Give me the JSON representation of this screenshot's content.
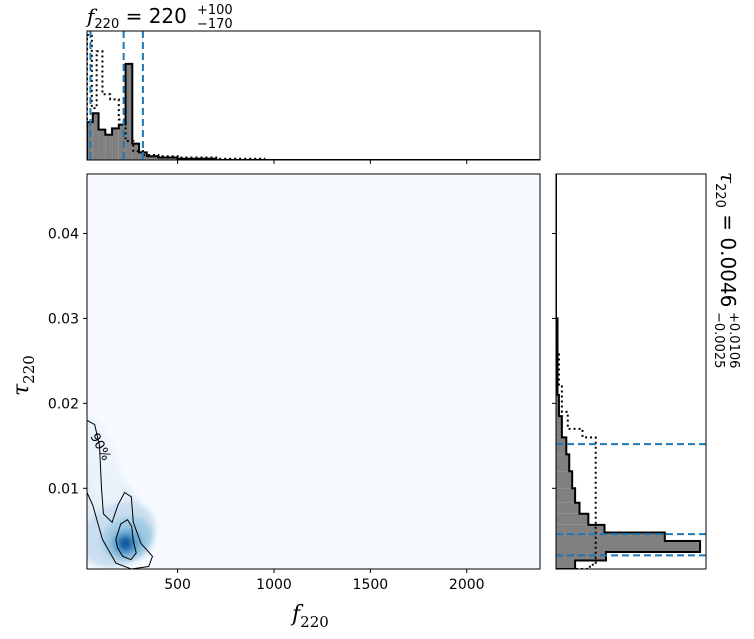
{
  "chart_data": [
    {
      "type": "histogram",
      "panel": "top",
      "title_var": "f",
      "title_sub": "220",
      "title_eq": " = 220",
      "title_sup": "+100",
      "title_inf": "−170",
      "x_range": [
        30,
        2380
      ],
      "markers": [
        48,
        220,
        320
      ],
      "posterior_bins": [
        {
          "x0": 30,
          "x1": 60,
          "h": 0.3
        },
        {
          "x0": 60,
          "x1": 90,
          "h": 0.37
        },
        {
          "x0": 90,
          "x1": 125,
          "h": 0.24
        },
        {
          "x0": 125,
          "x1": 160,
          "h": 0.2
        },
        {
          "x0": 160,
          "x1": 195,
          "h": 0.25
        },
        {
          "x0": 195,
          "x1": 230,
          "h": 0.28
        },
        {
          "x0": 230,
          "x1": 265,
          "h": 0.76
        },
        {
          "x0": 265,
          "x1": 300,
          "h": 0.13
        },
        {
          "x0": 300,
          "x1": 340,
          "h": 0.06
        },
        {
          "x0": 340,
          "x1": 400,
          "h": 0.03
        },
        {
          "x0": 400,
          "x1": 500,
          "h": 0.02
        },
        {
          "x0": 500,
          "x1": 700,
          "h": 0.01
        },
        {
          "x0": 700,
          "x1": 2380,
          "h": 0.0
        }
      ],
      "prior_bins": [
        {
          "x0": 30,
          "x1": 55,
          "h": 0.99
        },
        {
          "x0": 55,
          "x1": 80,
          "h": 0.41
        },
        {
          "x0": 80,
          "x1": 110,
          "h": 0.86
        },
        {
          "x0": 110,
          "x1": 150,
          "h": 0.52
        },
        {
          "x0": 150,
          "x1": 195,
          "h": 0.48
        },
        {
          "x0": 195,
          "x1": 230,
          "h": 0.32
        },
        {
          "x0": 230,
          "x1": 270,
          "h": 0.15
        },
        {
          "x0": 270,
          "x1": 320,
          "h": 0.07
        },
        {
          "x0": 320,
          "x1": 400,
          "h": 0.04
        },
        {
          "x0": 400,
          "x1": 500,
          "h": 0.03
        },
        {
          "x0": 500,
          "x1": 700,
          "h": 0.02
        },
        {
          "x0": 700,
          "x1": 950,
          "h": 0.01
        },
        {
          "x0": 950,
          "x1": 2380,
          "h": 0.0
        }
      ],
      "colors": {
        "fill": "#808080",
        "line": "#000000",
        "marker": "#1f77b4"
      }
    },
    {
      "type": "heatmap",
      "panel": "main",
      "xlabel_var": "f",
      "xlabel_sub": "220",
      "ylabel_var": "τ",
      "ylabel_sub": "220",
      "xlim": [
        30,
        2380
      ],
      "ylim": [
        0.0005,
        0.047
      ],
      "xticks": [
        500,
        1000,
        1500,
        2000
      ],
      "yticks": [
        0.01,
        0.02,
        0.03,
        0.04
      ],
      "xtick_labels": [
        "500",
        "1000",
        "1500",
        "2000"
      ],
      "ytick_labels": [
        "0.01",
        "0.02",
        "0.03",
        "0.04"
      ],
      "contour_label": "90%",
      "peak": {
        "f": 230,
        "tau": 0.0035
      },
      "colors": {
        "background": "#f7fbff",
        "peak": "#08519c",
        "contour": "#000000"
      }
    },
    {
      "type": "histogram",
      "panel": "right",
      "orientation": "horizontal",
      "title_var": "τ",
      "title_sub": "220",
      "title_eq": " = 0.0046",
      "title_sup": "+0.0106",
      "title_inf": "−0.0025",
      "y_range": [
        0.0005,
        0.047
      ],
      "markers": [
        0.0021,
        0.0046,
        0.0152
      ],
      "posterior_bins": [
        {
          "y0": 0.0005,
          "y1": 0.0015,
          "w": 0.13
        },
        {
          "y0": 0.0015,
          "y1": 0.0025,
          "w": 0.34
        },
        {
          "y0": 0.0025,
          "y1": 0.0038,
          "w": 0.98
        },
        {
          "y0": 0.0038,
          "y1": 0.0048,
          "w": 0.74
        },
        {
          "y0": 0.0048,
          "y1": 0.0057,
          "w": 0.33
        },
        {
          "y0": 0.0057,
          "y1": 0.007,
          "w": 0.22
        },
        {
          "y0": 0.007,
          "y1": 0.0083,
          "w": 0.16
        },
        {
          "y0": 0.0083,
          "y1": 0.01,
          "w": 0.13
        },
        {
          "y0": 0.01,
          "y1": 0.012,
          "w": 0.11
        },
        {
          "y0": 0.012,
          "y1": 0.014,
          "w": 0.09
        },
        {
          "y0": 0.014,
          "y1": 0.016,
          "w": 0.07
        },
        {
          "y0": 0.016,
          "y1": 0.0185,
          "w": 0.04
        },
        {
          "y0": 0.0185,
          "y1": 0.021,
          "w": 0.02
        },
        {
          "y0": 0.021,
          "y1": 0.03,
          "w": 0.01
        },
        {
          "y0": 0.03,
          "y1": 0.047,
          "w": 0.0
        }
      ],
      "prior_bins": [
        {
          "y0": 0.0005,
          "y1": 0.001,
          "w": 0.23
        },
        {
          "y0": 0.001,
          "y1": 0.016,
          "w": 0.27
        },
        {
          "y0": 0.016,
          "y1": 0.017,
          "w": 0.18
        },
        {
          "y0": 0.017,
          "y1": 0.019,
          "w": 0.08
        },
        {
          "y0": 0.019,
          "y1": 0.022,
          "w": 0.04
        },
        {
          "y0": 0.022,
          "y1": 0.026,
          "w": 0.02
        },
        {
          "y0": 0.026,
          "y1": 0.03,
          "w": 0.01
        },
        {
          "y0": 0.03,
          "y1": 0.047,
          "w": 0.0
        }
      ],
      "colors": {
        "fill": "#808080",
        "line": "#000000",
        "marker": "#1f77b4"
      }
    }
  ]
}
